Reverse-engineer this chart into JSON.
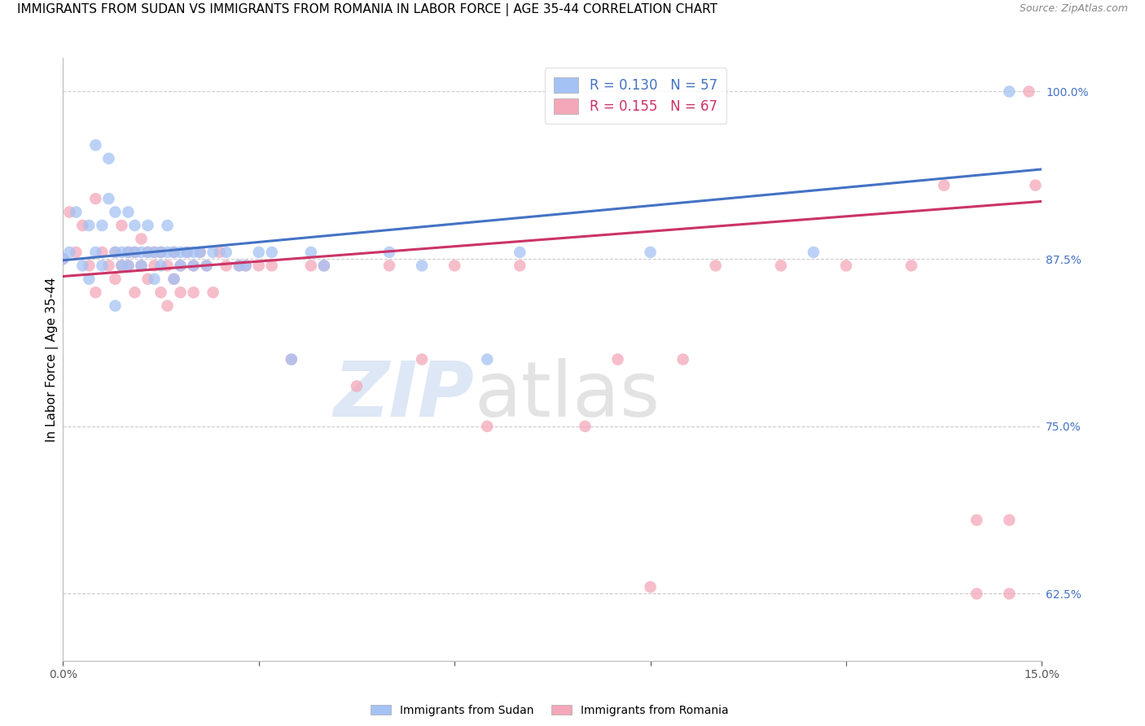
{
  "title": "IMMIGRANTS FROM SUDAN VS IMMIGRANTS FROM ROMANIA IN LABOR FORCE | AGE 35-44 CORRELATION CHART",
  "source": "Source: ZipAtlas.com",
  "ylabel": "In Labor Force | Age 35-44",
  "xlim": [
    0.0,
    0.15
  ],
  "ylim": [
    0.575,
    1.025
  ],
  "xticks": [
    0.0,
    0.03,
    0.06,
    0.09,
    0.12,
    0.15
  ],
  "xticklabels": [
    "0.0%",
    "",
    "",
    "",
    "",
    "15.0%"
  ],
  "yticks_right": [
    0.625,
    0.75,
    0.875,
    1.0
  ],
  "ytick_labels_right": [
    "62.5%",
    "75.0%",
    "87.5%",
    "100.0%"
  ],
  "sudan_R": 0.13,
  "sudan_N": 57,
  "romania_R": 0.155,
  "romania_N": 67,
  "sudan_color": "#a4c2f4",
  "romania_color": "#f4a7b9",
  "sudan_line_color": "#4472c4",
  "romania_line_color": "#cc3366",
  "sudan_line_x0": 0.0,
  "sudan_line_y0": 0.874,
  "sudan_line_x1": 0.15,
  "sudan_line_y1": 0.942,
  "romania_line_x0": 0.0,
  "romania_line_y0": 0.862,
  "romania_line_x1": 0.15,
  "romania_line_y1": 0.918,
  "sudan_scatter_x": [
    0.0,
    0.001,
    0.002,
    0.003,
    0.004,
    0.004,
    0.005,
    0.005,
    0.006,
    0.006,
    0.007,
    0.007,
    0.008,
    0.008,
    0.008,
    0.009,
    0.009,
    0.01,
    0.01,
    0.01,
    0.011,
    0.011,
    0.012,
    0.012,
    0.013,
    0.013,
    0.014,
    0.014,
    0.015,
    0.015,
    0.016,
    0.016,
    0.017,
    0.017,
    0.018,
    0.018,
    0.019,
    0.02,
    0.02,
    0.021,
    0.022,
    0.023,
    0.025,
    0.027,
    0.028,
    0.03,
    0.032,
    0.035,
    0.038,
    0.04,
    0.05,
    0.055,
    0.065,
    0.07,
    0.09,
    0.115,
    0.145
  ],
  "sudan_scatter_y": [
    0.875,
    0.88,
    0.91,
    0.87,
    0.9,
    0.86,
    0.96,
    0.88,
    0.87,
    0.9,
    0.92,
    0.95,
    0.88,
    0.91,
    0.84,
    0.88,
    0.87,
    0.88,
    0.91,
    0.87,
    0.88,
    0.9,
    0.88,
    0.87,
    0.88,
    0.9,
    0.88,
    0.86,
    0.88,
    0.87,
    0.88,
    0.9,
    0.88,
    0.86,
    0.88,
    0.87,
    0.88,
    0.88,
    0.87,
    0.88,
    0.87,
    0.88,
    0.88,
    0.87,
    0.87,
    0.88,
    0.88,
    0.8,
    0.88,
    0.87,
    0.88,
    0.87,
    0.8,
    0.88,
    0.88,
    0.88,
    1.0
  ],
  "romania_scatter_x": [
    0.0,
    0.001,
    0.002,
    0.003,
    0.004,
    0.005,
    0.005,
    0.006,
    0.007,
    0.008,
    0.008,
    0.009,
    0.009,
    0.01,
    0.01,
    0.011,
    0.011,
    0.012,
    0.012,
    0.013,
    0.013,
    0.014,
    0.014,
    0.015,
    0.015,
    0.016,
    0.016,
    0.017,
    0.017,
    0.018,
    0.018,
    0.019,
    0.02,
    0.02,
    0.021,
    0.022,
    0.023,
    0.024,
    0.025,
    0.027,
    0.028,
    0.03,
    0.032,
    0.035,
    0.038,
    0.04,
    0.045,
    0.05,
    0.055,
    0.06,
    0.065,
    0.07,
    0.08,
    0.085,
    0.09,
    0.095,
    0.1,
    0.11,
    0.12,
    0.13,
    0.135,
    0.14,
    0.14,
    0.145,
    0.145,
    0.148,
    0.149
  ],
  "romania_scatter_y": [
    0.875,
    0.91,
    0.88,
    0.9,
    0.87,
    0.85,
    0.92,
    0.88,
    0.87,
    0.88,
    0.86,
    0.9,
    0.87,
    0.88,
    0.87,
    0.85,
    0.88,
    0.87,
    0.89,
    0.88,
    0.86,
    0.87,
    0.88,
    0.85,
    0.88,
    0.84,
    0.87,
    0.88,
    0.86,
    0.87,
    0.85,
    0.88,
    0.87,
    0.85,
    0.88,
    0.87,
    0.85,
    0.88,
    0.87,
    0.87,
    0.87,
    0.87,
    0.87,
    0.8,
    0.87,
    0.87,
    0.78,
    0.87,
    0.8,
    0.87,
    0.75,
    0.87,
    0.75,
    0.8,
    0.63,
    0.8,
    0.87,
    0.87,
    0.87,
    0.87,
    0.93,
    0.625,
    0.68,
    0.625,
    0.68,
    1.0,
    0.93
  ],
  "watermark_zip": "ZIP",
  "watermark_atlas": "atlas",
  "background_color": "#ffffff",
  "grid_color": "#cccccc",
  "title_fontsize": 11,
  "axis_label_fontsize": 11,
  "tick_fontsize": 10,
  "legend_fontsize": 12
}
